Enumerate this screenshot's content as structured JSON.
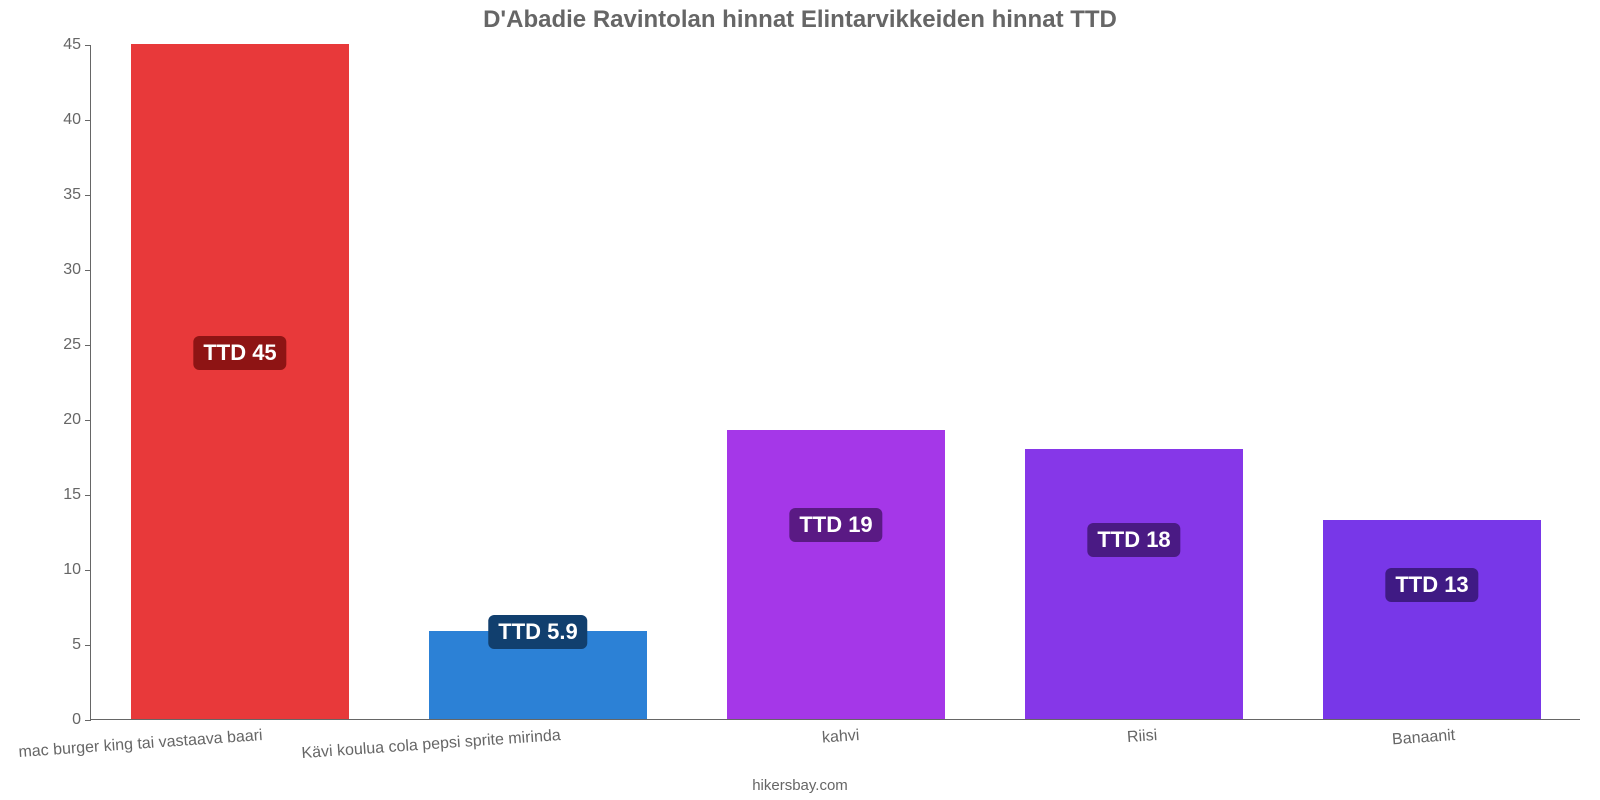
{
  "chart": {
    "type": "bar",
    "title": "D'Abadie Ravintolan hinnat Elintarvikkeiden hinnat TTD",
    "title_fontsize": 24,
    "title_color": "#666666",
    "attribution": "hikersbay.com",
    "attribution_color": "#666666",
    "background_color": "#ffffff",
    "axis_color": "#666666",
    "tick_font_size": 16,
    "tick_color": "#666666",
    "ylim": [
      0,
      45
    ],
    "yticks": [
      0,
      5,
      10,
      15,
      20,
      25,
      30,
      35,
      40,
      45
    ],
    "bar_width_pct": 73,
    "categories": [
      "mac burger king tai vastaava baari",
      "Kävi koulua cola pepsi sprite mirinda",
      "kahvi",
      "Riisi",
      "Banaanit"
    ],
    "values": [
      45,
      5.9,
      19.3,
      18,
      13.3
    ],
    "value_labels": [
      "TTD 45",
      "TTD 5.9",
      "TTD 19",
      "TTD 18",
      "TTD 13"
    ],
    "bar_colors": [
      "#e8393a",
      "#2c81d6",
      "#a537e8",
      "#8637e8",
      "#7837e8"
    ],
    "label_bg_colors": [
      "#8e1414",
      "#113f6e",
      "#5a1a84",
      "#4a1a84",
      "#3f1a84"
    ],
    "label_text_color": "#ffffff",
    "label_fontsize": 22,
    "label_y_values": [
      24.5,
      5.9,
      13,
      12,
      9
    ]
  }
}
